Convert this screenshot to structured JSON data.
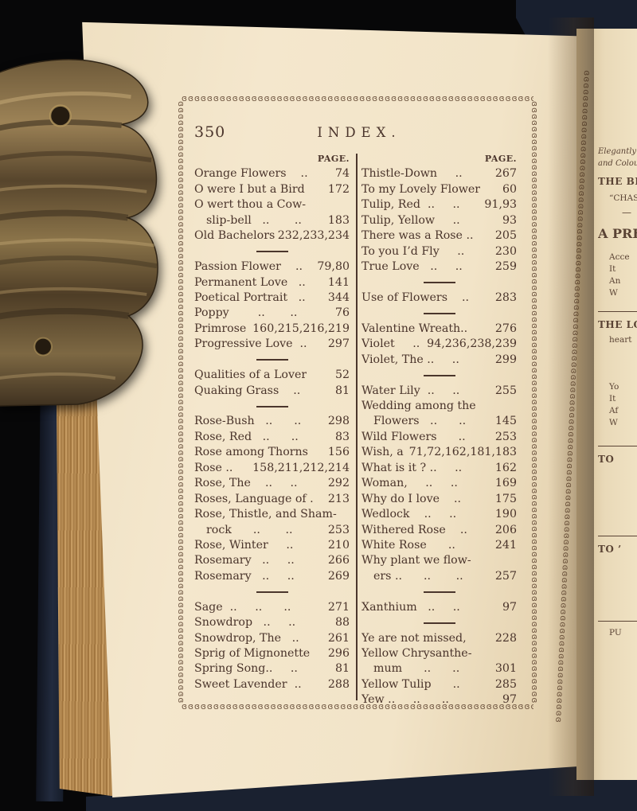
{
  "page": {
    "number": "350",
    "title": "INDEX.",
    "col_header": "PAGE."
  },
  "ornament": {
    "unit_name": "scroll-chain-ornament",
    "unit": "ɞ",
    "repeat": 150
  },
  "colors": {
    "ink": "#4a342b",
    "page_cream": "#f2e4c8",
    "ornament_brown": "#6d543f",
    "cover_navy": "#1a2130",
    "fore_edge_tan": "#b78c54",
    "brass": "#8a7349",
    "background": "#070708"
  },
  "left_column": {
    "rows": [
      {
        "k": "h"
      },
      {
        "k": "e",
        "l": "Orange Flowers    ..",
        "p": "74"
      },
      {
        "k": "e",
        "l": "O were I but a Bird",
        "p": "172"
      },
      {
        "k": "e",
        "l": "O wert thou a Cow-",
        "p": ""
      },
      {
        "k": "e",
        "i": true,
        "l": "slip-bell   ..       ..",
        "p": "183"
      },
      {
        "k": "e",
        "l": "Old Bachelors..",
        "p": "232,233,234"
      },
      {
        "k": "d"
      },
      {
        "k": "e",
        "l": "Passion Flower    ..",
        "p": "79,80"
      },
      {
        "k": "e",
        "l": "Permanent Love   ..",
        "p": "141"
      },
      {
        "k": "e",
        "l": "Poetical Portrait   ..",
        "p": "344"
      },
      {
        "k": "e",
        "l": "Poppy        ..       ..",
        "p": "76"
      },
      {
        "k": "e",
        "l": "Primrose",
        "p": "160,215,216,219"
      },
      {
        "k": "e",
        "l": "Progressive Love  ..",
        "p": "297"
      },
      {
        "k": "d"
      },
      {
        "k": "e",
        "l": "Qualities of a Lover",
        "p": "52"
      },
      {
        "k": "e",
        "l": "Quaking Grass    ..",
        "p": "81"
      },
      {
        "k": "d"
      },
      {
        "k": "e",
        "l": "Rose-Bush   ..      ..",
        "p": "298"
      },
      {
        "k": "e",
        "l": "Rose, Red   ..      ..",
        "p": "83"
      },
      {
        "k": "e",
        "l": "Rose among Thorns",
        "p": "156"
      },
      {
        "k": "e",
        "l": "Rose ..",
        "p": "158,211,212,214"
      },
      {
        "k": "e",
        "l": "Rose, The    ..     ..",
        "p": "292"
      },
      {
        "k": "e",
        "l": "Roses, Language of .",
        "p": "213"
      },
      {
        "k": "e",
        "l": "Rose, Thistle, and Sham-",
        "p": ""
      },
      {
        "k": "e",
        "i": true,
        "l": "rock      ..       ..",
        "p": "253"
      },
      {
        "k": "e",
        "l": "Rose, Winter     ..",
        "p": "210"
      },
      {
        "k": "e",
        "l": "Rosemary   ..     ..",
        "p": "266"
      },
      {
        "k": "e",
        "l": "Rosemary   ..     ..",
        "p": "269"
      },
      {
        "k": "d"
      },
      {
        "k": "e",
        "l": "Sage  ..     ..      ..",
        "p": "271"
      },
      {
        "k": "e",
        "l": "Snowdrop   ..     ..",
        "p": "88"
      },
      {
        "k": "e",
        "l": "Snowdrop, The   ..",
        "p": "261"
      },
      {
        "k": "e",
        "l": "Sprig of Mignonette",
        "p": "296"
      },
      {
        "k": "e",
        "l": "Spring Song..     ..",
        "p": "81"
      },
      {
        "k": "e",
        "l": "Sweet Lavender  ..",
        "p": "288"
      }
    ]
  },
  "right_column": {
    "rows": [
      {
        "k": "h"
      },
      {
        "k": "e",
        "l": "Thistle-Down     ..",
        "p": "267"
      },
      {
        "k": "e",
        "l": "To my Lovely Flower",
        "p": "60"
      },
      {
        "k": "e",
        "l": "Tulip, Red  ..     ..",
        "p": "91,93"
      },
      {
        "k": "e",
        "l": "Tulip, Yellow     ..",
        "p": "93"
      },
      {
        "k": "e",
        "l": "There was a Rose ..",
        "p": "205"
      },
      {
        "k": "e",
        "l": "To you I’d Fly     ..",
        "p": "230"
      },
      {
        "k": "e",
        "l": "True Love   ..     ..",
        "p": "259"
      },
      {
        "k": "d"
      },
      {
        "k": "e",
        "l": "Use of Flowers    ..",
        "p": "283"
      },
      {
        "k": "d"
      },
      {
        "k": "e",
        "l": "Valentine Wreath..",
        "p": "276"
      },
      {
        "k": "e",
        "l": "Violet     ..",
        "p": "94,236,238,239"
      },
      {
        "k": "e",
        "l": "Violet, The ..     ..",
        "p": "299"
      },
      {
        "k": "d"
      },
      {
        "k": "e",
        "l": "Water Lily  ..     ..",
        "p": "255"
      },
      {
        "k": "e",
        "l": "Wedding among the",
        "p": ""
      },
      {
        "k": "e",
        "i": true,
        "l": "Flowers   ..      ..",
        "p": "145"
      },
      {
        "k": "e",
        "l": "Wild Flowers      ..",
        "p": "253"
      },
      {
        "k": "e",
        "l": "Wish, a",
        "p": "71,72,162,181,183"
      },
      {
        "k": "e",
        "l": "What is it ? ..     ..",
        "p": "162"
      },
      {
        "k": "e",
        "l": "Woman,     ..     ..",
        "p": "169"
      },
      {
        "k": "e",
        "l": "Why do I love    ..",
        "p": "175"
      },
      {
        "k": "e",
        "l": "Wedlock    ..     ..",
        "p": "190"
      },
      {
        "k": "e",
        "l": "Withered Rose    ..",
        "p": "206"
      },
      {
        "k": "e",
        "l": "White Rose      ..",
        "p": "241"
      },
      {
        "k": "e",
        "l": "Why plant we flow-",
        "p": ""
      },
      {
        "k": "e",
        "i": true,
        "l": "ers ..      ..       ..",
        "p": "257"
      },
      {
        "k": "d"
      },
      {
        "k": "e",
        "l": "Xanthium   ..     ..",
        "p": "97"
      },
      {
        "k": "d"
      },
      {
        "k": "e",
        "l": "Ye are not missed,",
        "p": "228"
      },
      {
        "k": "e",
        "l": "Yellow Chrysanthe-",
        "p": ""
      },
      {
        "k": "e",
        "i": true,
        "l": "mum      ..      ..",
        "p": "301"
      },
      {
        "k": "e",
        "l": "Yellow Tulip      ..",
        "p": "285"
      },
      {
        "k": "e",
        "l": "Yew ..     ..      ..",
        "p": "97"
      }
    ]
  },
  "facing_page": {
    "fragments": [
      {
        "t": "Elegantly Bou",
        "c": "frag-it",
        "mt": 0
      },
      {
        "t": "and Colour",
        "c": "frag-it",
        "mt": 2
      },
      {
        "t": "THE BEST I",
        "c": "frag-bold",
        "mt": 9
      },
      {
        "t": "“CHASTE, S",
        "c": "frag-sm",
        "mt": 7
      },
      {
        "t": "—",
        "c": "frag-dash",
        "mt": 4
      },
      {
        "t": "A PRESE",
        "c": "frag-big",
        "mt": 10
      },
      {
        "t": "Acce",
        "c": "frag-sm",
        "mt": 14
      },
      {
        "t": "It",
        "c": "frag-sm",
        "mt": 2
      },
      {
        "t": "An",
        "c": "frag-sm",
        "mt": 2
      },
      {
        "t": "W",
        "c": "frag-sm",
        "mt": 2
      },
      {
        "t": "",
        "c": "frag-rule",
        "mt": 16
      },
      {
        "t": "THE LOV",
        "c": "frag-bold",
        "mt": 9
      },
      {
        "t": "heart",
        "c": "frag-sm",
        "mt": 5
      },
      {
        "t": "Yo",
        "c": "frag-sm",
        "mt": 46
      },
      {
        "t": "It",
        "c": "frag-sm",
        "mt": 2
      },
      {
        "t": "Af",
        "c": "frag-sm",
        "mt": 2
      },
      {
        "t": "W",
        "c": "frag-sm",
        "mt": 2
      },
      {
        "t": "",
        "c": "frag-rule",
        "mt": 22
      },
      {
        "t": "TO",
        "c": "frag-bold",
        "mt": 9
      },
      {
        "t": "",
        "c": "frag-rule",
        "mt": 88
      },
      {
        "t": "TO ’",
        "c": "frag-bold",
        "mt": 9
      },
      {
        "t": "",
        "c": "frag-rule",
        "mt": 82
      },
      {
        "t": "PU",
        "c": "frag-sm",
        "mt": 8
      }
    ]
  }
}
